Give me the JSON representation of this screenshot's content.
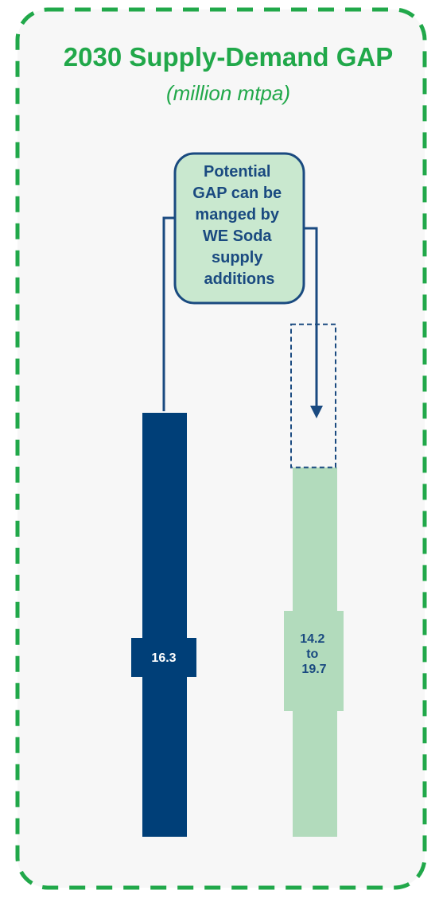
{
  "chart_data": {
    "type": "bar",
    "title": "2030 Supply-Demand GAP",
    "subtitle": "(million mtpa)",
    "xlabel": "",
    "ylabel": "",
    "ylim": [
      0,
      20
    ],
    "grid": false,
    "legend": "none",
    "bars": [
      {
        "value": 16.3,
        "label": "16.3",
        "color": "#003f78",
        "label_color": "#ffffff"
      },
      {
        "value": 14.2,
        "range_high": 19.7,
        "label": [
          "14.2",
          "to",
          "19.7"
        ],
        "color": "#b2dbbc",
        "label_color": "#1a4a80"
      }
    ],
    "annotation": {
      "lines": [
        "Potential",
        "GAP can be",
        "manged by",
        "WE Soda",
        "supply",
        "additions"
      ]
    }
  },
  "colors": {
    "frame_border": "#21a84a",
    "panel_bg": "#f7f7f7",
    "title_green": "#21a84a",
    "navy": "#003f78",
    "dark_blue": "#1a4a80",
    "light_green": "#b2dbbc",
    "callout_fill": "#c9e8cf",
    "connector": "#1a4a80"
  }
}
